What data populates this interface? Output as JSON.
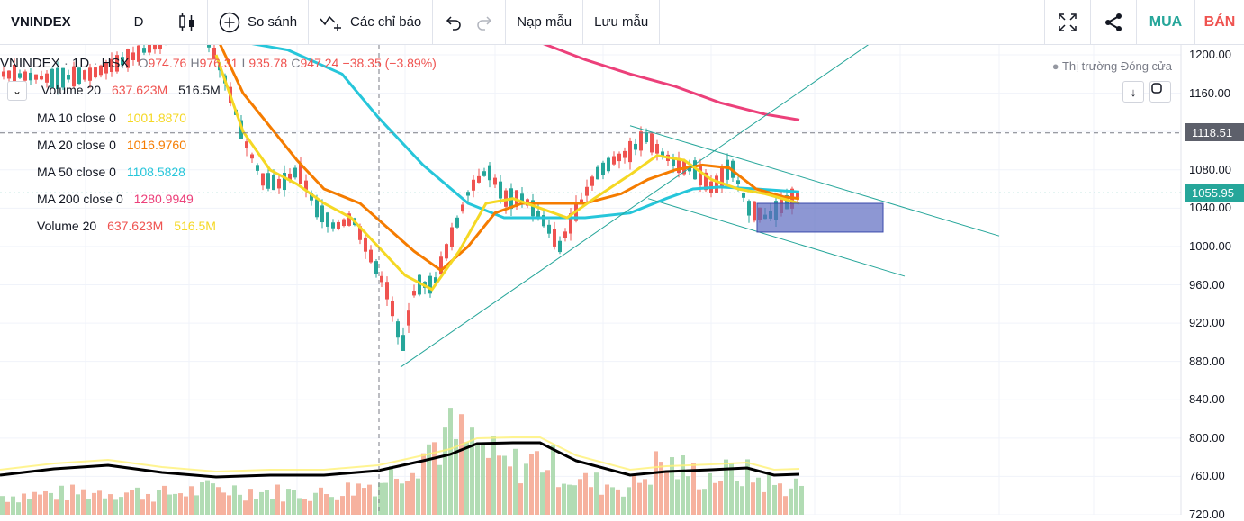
{
  "toolbar": {
    "symbol": "VNINDEX",
    "interval": "D",
    "compare_label": "So sánh",
    "indicators_label": "Các chỉ báo",
    "load_template_label": "Nạp mẫu",
    "save_template_label": "Lưu mẫu",
    "buy_label": "MUA",
    "sell_label": "BÁN"
  },
  "legend": {
    "symbol": "VNINDEX",
    "interval": "1D",
    "exchange": "HSX",
    "open_label": "O",
    "open": "974.76",
    "high_label": "H",
    "high": "976.31",
    "low_label": "L",
    "low": "935.78",
    "close_label": "C",
    "close": "947.24",
    "change": "−38.35 (−3.89%)",
    "indicators": [
      {
        "name": "Volume 20",
        "v1": "637.623M",
        "v2": "516.5M",
        "c1": "#ef5350",
        "c2": "#131722"
      },
      {
        "name": "MA 10 close 0",
        "v1": "1001.8870",
        "v2": "",
        "c1": "#f5d824",
        "c2": ""
      },
      {
        "name": "MA 20 close 0",
        "v1": "1016.9760",
        "v2": "",
        "c1": "#f57c00",
        "c2": ""
      },
      {
        "name": "MA 50 close 0",
        "v1": "1108.5828",
        "v2": "",
        "c1": "#26c6da",
        "c2": ""
      },
      {
        "name": "MA 200 close 0",
        "v1": "1280.9949",
        "v2": "",
        "c1": "#ec407a",
        "c2": ""
      },
      {
        "name": "Volume 20",
        "v1": "637.623M",
        "v2": "516.5M",
        "c1": "#ef5350",
        "c2": "#f5d824"
      }
    ]
  },
  "market_status": "Thị trường Đóng cửa",
  "price_axis": {
    "ticks": [
      "1200.00",
      "1160.00",
      "1118.51",
      "1080.00",
      "1055.95",
      "1040.00",
      "1000.00",
      "960.00",
      "920.00",
      "880.00",
      "840.00",
      "800.00",
      "760.00",
      "720.00"
    ],
    "crosshair_price": "1118.51",
    "last_price": "1055.95"
  },
  "colors": {
    "up": "#26a69a",
    "down": "#ef5350",
    "ma10": "#f5d824",
    "ma20": "#f57c00",
    "ma50": "#26c6da",
    "ma200": "#ec407a",
    "rect_fill": "#5c6bc0"
  },
  "icons": {
    "bar_style": "candles-icon",
    "compare": "plus-circle-icon",
    "indicators": "indicators-icon",
    "undo": "undo-icon",
    "redo": "redo-icon",
    "fullscreen": "fullscreen-icon",
    "share": "share-icon"
  }
}
